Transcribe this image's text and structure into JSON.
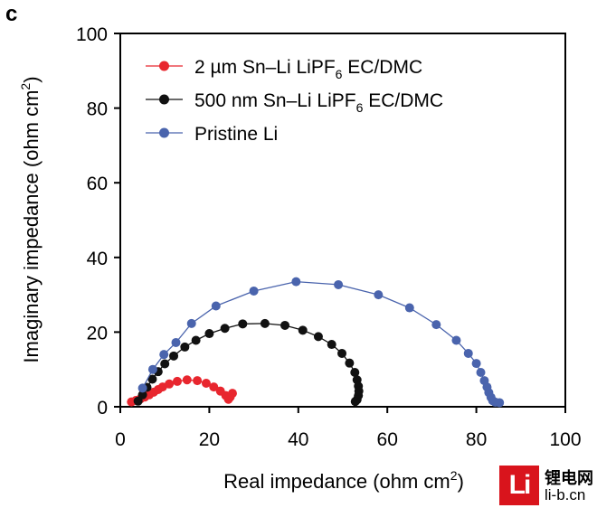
{
  "panel_label": "c",
  "chart_data": {
    "type": "scatter",
    "title": "",
    "xlabel": "Real impedance (ohm cm",
    "xlabel_sup": "2",
    "xlabel_close": ")",
    "ylabel": "Imaginary impedance (ohm cm",
    "ylabel_sup": "2",
    "ylabel_close": ")",
    "xlim": [
      0,
      100
    ],
    "ylim": [
      0,
      100
    ],
    "xticks": [
      "0",
      "20",
      "40",
      "60",
      "80",
      "100"
    ],
    "yticks": [
      "0",
      "20",
      "40",
      "60",
      "80",
      "100"
    ],
    "legend_position": "top-left",
    "series": [
      {
        "name": "2 µm Sn–Li LiPF",
        "name_sub": "6",
        "name_tail": " EC/DMC",
        "color": "#e8262e",
        "points": [
          [
            2.5,
            1.3
          ],
          [
            3.5,
            1.7
          ],
          [
            4.5,
            2.1
          ],
          [
            5.5,
            2.6
          ],
          [
            6.5,
            3.2
          ],
          [
            7.5,
            3.9
          ],
          [
            8.5,
            4.6
          ],
          [
            9.5,
            5.3
          ],
          [
            11,
            6.1
          ],
          [
            12.8,
            6.8
          ],
          [
            15,
            7.2
          ],
          [
            17.3,
            7.0
          ],
          [
            19.3,
            6.3
          ],
          [
            21,
            5.3
          ],
          [
            22.5,
            4.2
          ],
          [
            23.7,
            3.0
          ],
          [
            24.3,
            2.0
          ],
          [
            24.7,
            2.6
          ],
          [
            25.2,
            3.6
          ]
        ]
      },
      {
        "name": "500 nm Sn–Li LiPF",
        "name_sub": "6",
        "name_tail": " EC/DMC",
        "color": "#111111",
        "points": [
          [
            4,
            1.5
          ],
          [
            5,
            3.2
          ],
          [
            6,
            5.2
          ],
          [
            7.2,
            7.4
          ],
          [
            8.5,
            9.4
          ],
          [
            10,
            11.5
          ],
          [
            12,
            13.6
          ],
          [
            14.5,
            16.0
          ],
          [
            17,
            17.8
          ],
          [
            20,
            19.6
          ],
          [
            23.5,
            21.0
          ],
          [
            27.5,
            22.2
          ],
          [
            32.5,
            22.3
          ],
          [
            37,
            21.8
          ],
          [
            41,
            20.5
          ],
          [
            44.5,
            18.8
          ],
          [
            47.5,
            16.7
          ],
          [
            49.8,
            14.3
          ],
          [
            51.5,
            11.7
          ],
          [
            52.7,
            9.2
          ],
          [
            53.2,
            7.2
          ],
          [
            53.5,
            5.5
          ],
          [
            53.6,
            4.2
          ],
          [
            53.5,
            3.0
          ],
          [
            53.2,
            1.9
          ],
          [
            52.8,
            1.4
          ]
        ]
      },
      {
        "name": "Pristine Li",
        "name_sub": "",
        "name_tail": "",
        "color": "#4a64ad",
        "points": [
          [
            5,
            5
          ],
          [
            7.3,
            10
          ],
          [
            9.8,
            14
          ],
          [
            12.5,
            17.2
          ],
          [
            16,
            22.3
          ],
          [
            21.5,
            27
          ],
          [
            30,
            31
          ],
          [
            39.5,
            33.5
          ],
          [
            49,
            32.7
          ],
          [
            58,
            30
          ],
          [
            65,
            26.5
          ],
          [
            71,
            22
          ],
          [
            75.5,
            17.8
          ],
          [
            78.2,
            14.3
          ],
          [
            80,
            11.6
          ],
          [
            81,
            9.2
          ],
          [
            81.8,
            7
          ],
          [
            82.4,
            5.3
          ],
          [
            82.8,
            3.8
          ],
          [
            83.3,
            2.5
          ],
          [
            83.7,
            1.6
          ],
          [
            84.3,
            1.2
          ],
          [
            85.2,
            1.1
          ]
        ]
      }
    ]
  },
  "watermark": {
    "logo": "Li",
    "top": "锂电网",
    "bottom": "li-b.cn"
  }
}
